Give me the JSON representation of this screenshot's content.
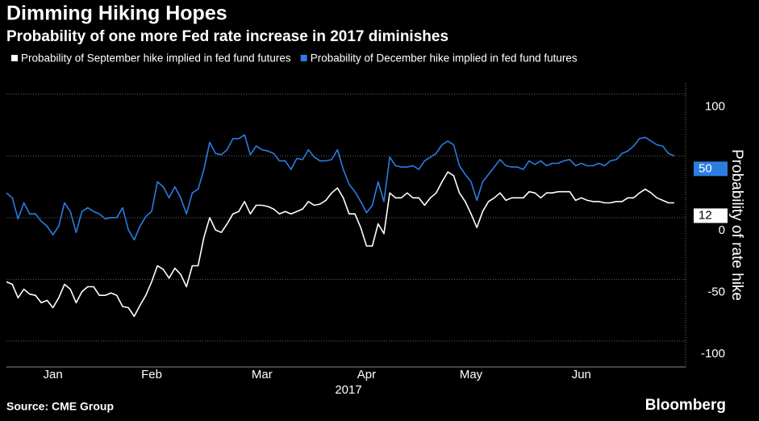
{
  "chart_data": {
    "type": "line",
    "title": "Dimming Hiking Hopes",
    "subtitle": "Probability of one more Fed rate increase in 2017 diminishes",
    "y_label": "Probability of rate hike",
    "x_label": "2017",
    "source": "Source: CME Group",
    "brand": "Bloomberg",
    "ylim": [
      -121,
      109
    ],
    "yticks": [
      -100,
      -50,
      0,
      50,
      100
    ],
    "grid": true,
    "categories": [
      null,
      null,
      null,
      null,
      null,
      null,
      null,
      null,
      "Jan",
      null,
      null,
      null,
      null,
      null,
      null,
      null,
      null,
      null,
      null,
      null,
      null,
      null,
      null,
      null,
      null,
      "Feb",
      null,
      null,
      null,
      null,
      null,
      null,
      null,
      null,
      null,
      null,
      null,
      null,
      null,
      null,
      null,
      null,
      null,
      null,
      "Mar",
      null,
      null,
      null,
      null,
      null,
      null,
      null,
      null,
      null,
      null,
      null,
      null,
      null,
      null,
      null,
      null,
      null,
      "Apr",
      null,
      null,
      null,
      null,
      null,
      null,
      null,
      null,
      null,
      null,
      null,
      null,
      null,
      null,
      null,
      null,
      null,
      "May",
      null,
      null,
      null,
      null,
      null,
      null,
      null,
      null,
      null,
      null,
      null,
      null,
      null,
      null,
      null,
      null,
      null,
      null,
      "Jun",
      null,
      null,
      null,
      null,
      null,
      null,
      null,
      null,
      null,
      null,
      null,
      null,
      null,
      null,
      null,
      null
    ],
    "series": [
      {
        "name": "Probability of September hike implied in fed fund futures",
        "color": "#ffffff",
        "values": [
          -52,
          -54,
          -65,
          -58,
          -62,
          -63,
          -69,
          -67,
          -73,
          -65,
          -54,
          -58,
          -69,
          -60,
          -56,
          -56,
          -63,
          -63,
          -61,
          -63,
          -72,
          -73,
          -80,
          -71,
          -63,
          -52,
          -39,
          -42,
          -49,
          -41,
          -46,
          -56,
          -39,
          -39,
          -16,
          0,
          -10,
          -12,
          -5,
          3,
          5,
          13,
          3,
          10,
          10,
          9,
          7,
          3,
          5,
          3,
          5,
          7,
          13,
          10,
          11,
          14,
          20,
          24,
          16,
          3,
          3,
          -8,
          -23,
          -23,
          -5,
          -13,
          20,
          16,
          16,
          20,
          16,
          16,
          10,
          16,
          20,
          29,
          37,
          34,
          20,
          13,
          3,
          -8,
          5,
          13,
          16,
          20,
          14,
          16,
          16,
          16,
          21,
          20,
          16,
          20,
          20,
          21,
          21,
          21,
          14,
          16,
          14,
          13,
          13,
          12,
          12,
          13,
          13,
          16,
          16,
          20,
          23,
          20,
          16,
          14,
          12,
          12
        ]
      },
      {
        "name": "Probability of December hike implied in fed fund futures",
        "color": "#2b7de0",
        "values": [
          20,
          16,
          -1,
          12,
          3,
          3,
          -3,
          -7,
          -14,
          -7,
          12,
          5,
          -12,
          5,
          8,
          5,
          3,
          -1,
          0,
          0,
          8,
          -10,
          -18,
          -7,
          1,
          5,
          29,
          25,
          16,
          25,
          16,
          3,
          20,
          23,
          39,
          61,
          52,
          51,
          55,
          64,
          64,
          67,
          51,
          58,
          55,
          54,
          52,
          46,
          46,
          39,
          48,
          47,
          55,
          49,
          46,
          46,
          47,
          55,
          39,
          27,
          21,
          13,
          4,
          10,
          29,
          13,
          49,
          42,
          41,
          41,
          42,
          39,
          46,
          49,
          52,
          59,
          62,
          59,
          42,
          35,
          29,
          14,
          29,
          35,
          41,
          47,
          42,
          41,
          41,
          39,
          46,
          43,
          46,
          42,
          44,
          44,
          46,
          47,
          42,
          44,
          42,
          42,
          44,
          42,
          46,
          47,
          52,
          54,
          58,
          64,
          65,
          62,
          59,
          58,
          52,
          50
        ]
      }
    ]
  }
}
